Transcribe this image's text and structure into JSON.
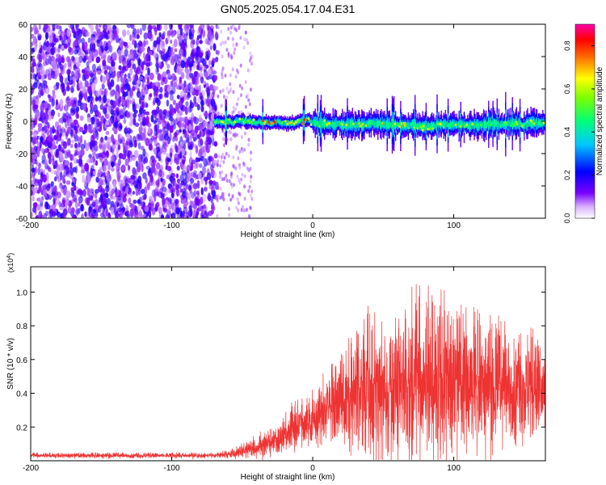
{
  "figure": {
    "title": "GN05.2025.054.17.04.E31"
  },
  "chart_data": [
    {
      "type": "heatmap",
      "xlabel": "Height of straight line (km)",
      "ylabel": "Frequency (Hz)",
      "xlim": [
        -200,
        165
      ],
      "ylim": [
        -60,
        60
      ],
      "x_ticks": [
        -200,
        -100,
        0,
        100
      ],
      "y_ticks": [
        -60,
        -40,
        -20,
        0,
        20,
        40,
        60
      ],
      "grid": false,
      "colorbar": {
        "label": "Normalized spectral amplitude",
        "range": [
          0,
          0.9
        ],
        "ticks": [
          "0.0",
          "0.2",
          "0.4",
          "0.6",
          "0.8"
        ],
        "colormap": "rainbow (violet→blue→cyan→green→yellow→red→magenta)"
      },
      "features": {
        "noise_region_x": [
          -200,
          -68
        ],
        "noise_amplitude": [
          0.05,
          0.2
        ],
        "signal_band_center_hz": 0,
        "signal_band_x": [
          -70,
          165
        ],
        "signal_band_halfwidth_hz": [
          4,
          14
        ],
        "signal_peak_amplitude": 0.85
      }
    },
    {
      "type": "line",
      "xlabel": "Height of straight line (km)",
      "ylabel": "SNR (10 * v/v)",
      "y_multiplier": "(x10^4)",
      "xlim": [
        -200,
        165
      ],
      "ylim": [
        0,
        1.15
      ],
      "x_ticks": [
        -200,
        -100,
        0,
        100
      ],
      "y_ticks": [
        0.2,
        0.4,
        0.6,
        0.8,
        1.0
      ],
      "grid": false,
      "series": [
        {
          "color": "#ee3333",
          "x": [
            -200,
            -150,
            -100,
            -70,
            -55,
            -45,
            -30,
            -20,
            -10,
            0,
            10,
            20,
            30,
            40,
            50,
            60,
            70,
            80,
            90,
            100,
            110,
            120,
            130,
            140,
            150,
            160,
            165
          ],
          "y": [
            0.03,
            0.03,
            0.03,
            0.03,
            0.04,
            0.07,
            0.1,
            0.15,
            0.2,
            0.24,
            0.3,
            0.33,
            0.36,
            0.37,
            0.39,
            0.41,
            0.42,
            0.43,
            0.44,
            0.45,
            0.44,
            0.43,
            0.42,
            0.42,
            0.41,
            0.4,
            0.4
          ],
          "envelope_max": [
            0.05,
            0.05,
            0.05,
            0.05,
            0.08,
            0.15,
            0.2,
            0.3,
            0.4,
            0.45,
            0.55,
            0.7,
            0.8,
            0.9,
            0.95,
            1.0,
            1.05,
            1.1,
            1.15,
            1.05,
            0.95,
            0.9,
            0.88,
            0.85,
            0.8,
            0.8,
            0.8
          ]
        }
      ]
    }
  ]
}
